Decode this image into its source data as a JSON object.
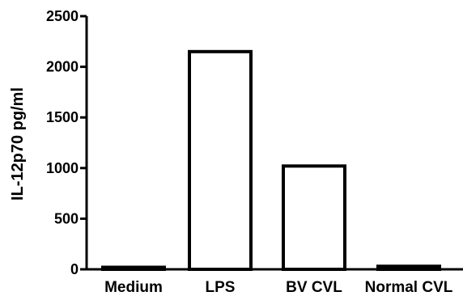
{
  "chart_data": {
    "type": "bar",
    "categories": [
      "Medium",
      "LPS",
      "BV CVL",
      "Normal CVL"
    ],
    "values": [
      20,
      2150,
      1020,
      30
    ],
    "title": "",
    "xlabel": "",
    "ylabel": "IL-12p70 pg/ml",
    "ylim": [
      0,
      2500
    ],
    "yticks": [
      0,
      500,
      1000,
      1500,
      2000,
      2500
    ],
    "ytick_labels": [
      "0",
      "500",
      "1000",
      "1500",
      "2000",
      "2500"
    ],
    "grid": false,
    "legend": "none",
    "bar_fill": "#ffffff",
    "bar_stroke": "#000000"
  }
}
